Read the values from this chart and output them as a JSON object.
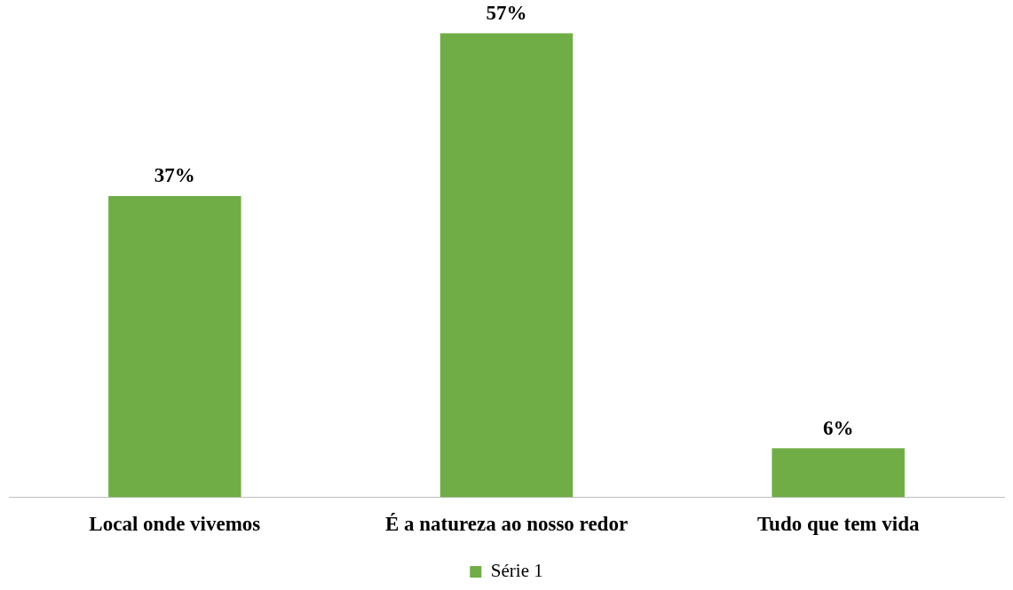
{
  "chart_data": {
    "type": "bar",
    "categories": [
      "Local onde vivemos",
      "É a natureza ao nosso redor",
      "Tudo que tem vida"
    ],
    "series": [
      {
        "name": "Série 1",
        "color": "#70ad47",
        "values": [
          37,
          57,
          6
        ],
        "value_labels": [
          "37%",
          "57%",
          "6%"
        ]
      }
    ],
    "legend": "bottom"
  }
}
